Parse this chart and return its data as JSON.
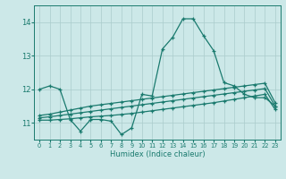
{
  "title": "",
  "xlabel": "Humidex (Indice chaleur)",
  "background_color": "#cce8e8",
  "grid_color": "#aacccc",
  "line_color": "#1a7a6e",
  "xlim": [
    -0.5,
    23.5
  ],
  "ylim": [
    10.5,
    14.5
  ],
  "xticks": [
    0,
    1,
    2,
    3,
    4,
    5,
    6,
    7,
    8,
    9,
    10,
    11,
    12,
    13,
    14,
    15,
    16,
    17,
    18,
    19,
    20,
    21,
    22,
    23
  ],
  "yticks": [
    11,
    12,
    13,
    14
  ],
  "line1_x": [
    0,
    1,
    2,
    3,
    4,
    5,
    6,
    7,
    8,
    9,
    10,
    11,
    12,
    13,
    14,
    15,
    16,
    17,
    18,
    19,
    20,
    21,
    22,
    23
  ],
  "line1_y": [
    12.0,
    12.1,
    12.0,
    11.1,
    10.75,
    11.1,
    11.1,
    11.05,
    10.65,
    10.85,
    11.85,
    11.8,
    13.2,
    13.55,
    14.1,
    14.1,
    13.6,
    13.15,
    12.2,
    12.1,
    11.85,
    11.75,
    11.75,
    11.5
  ],
  "line2_x": [
    0,
    1,
    2,
    3,
    4,
    5,
    6,
    7,
    8,
    9,
    10,
    11,
    12,
    13,
    14,
    15,
    16,
    17,
    18,
    19,
    20,
    21,
    22,
    23
  ],
  "line2_y": [
    11.08,
    11.08,
    11.1,
    11.12,
    11.15,
    11.18,
    11.2,
    11.22,
    11.25,
    11.28,
    11.32,
    11.36,
    11.4,
    11.44,
    11.48,
    11.52,
    11.56,
    11.6,
    11.65,
    11.7,
    11.75,
    11.8,
    11.85,
    11.4
  ],
  "line3_x": [
    0,
    1,
    2,
    3,
    4,
    5,
    6,
    7,
    8,
    9,
    10,
    11,
    12,
    13,
    14,
    15,
    16,
    17,
    18,
    19,
    20,
    21,
    22,
    23
  ],
  "line3_y": [
    11.15,
    11.18,
    11.22,
    11.26,
    11.3,
    11.34,
    11.38,
    11.42,
    11.46,
    11.5,
    11.54,
    11.58,
    11.62,
    11.66,
    11.7,
    11.74,
    11.78,
    11.82,
    11.86,
    11.9,
    11.94,
    11.98,
    12.02,
    11.5
  ],
  "line4_x": [
    0,
    1,
    2,
    3,
    4,
    5,
    6,
    7,
    8,
    9,
    10,
    11,
    12,
    13,
    14,
    15,
    16,
    17,
    18,
    19,
    20,
    21,
    22,
    23
  ],
  "line4_y": [
    11.22,
    11.26,
    11.32,
    11.38,
    11.44,
    11.5,
    11.54,
    11.58,
    11.62,
    11.66,
    11.7,
    11.74,
    11.78,
    11.82,
    11.86,
    11.9,
    11.94,
    11.98,
    12.02,
    12.06,
    12.1,
    12.14,
    12.18,
    11.6
  ]
}
